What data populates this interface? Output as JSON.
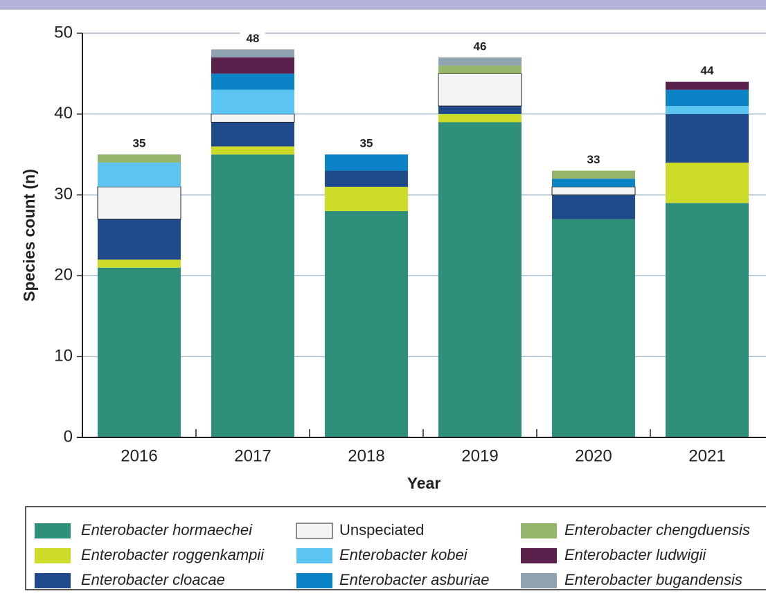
{
  "chart_data": {
    "type": "stacked_bar",
    "xlabel": "Year",
    "ylabel": "Species count (n)",
    "categories": [
      "2016",
      "2017",
      "2018",
      "2019",
      "2020",
      "2021"
    ],
    "totals": [
      35,
      48,
      35,
      46,
      33,
      44
    ],
    "series": [
      {
        "name": "Enterobacter hormaechei",
        "color": "#2e8f7a",
        "italic": true,
        "values": [
          21,
          35,
          28,
          39,
          27,
          29
        ]
      },
      {
        "name": "Enterobacter roggenkampii",
        "color": "#cddc29",
        "italic": true,
        "values": [
          1,
          1,
          3,
          1,
          0,
          5
        ]
      },
      {
        "name": "Enterobacter cloacae",
        "color": "#1f4a8c",
        "italic": true,
        "values": [
          5,
          3,
          2,
          1,
          3,
          6
        ]
      },
      {
        "name": "Unspeciated",
        "color": "#f2f4f6",
        "italic": false,
        "values": [
          4,
          1,
          0,
          4,
          1,
          0
        ]
      },
      {
        "name": "Enterobacter kobei",
        "color": "#5bc4f1",
        "italic": true,
        "values": [
          3,
          3,
          0,
          0,
          0,
          1
        ]
      },
      {
        "name": "Enterobacter asburiae",
        "color": "#0a84c6",
        "italic": true,
        "values": [
          0,
          2,
          2,
          0,
          1,
          2
        ]
      },
      {
        "name": "Enterobacter chengduensis",
        "color": "#94b56a",
        "italic": true,
        "values": [
          1,
          0,
          0,
          1,
          1,
          0
        ]
      },
      {
        "name": "Enterobacter ludwigii",
        "color": "#5a1f4b",
        "italic": true,
        "values": [
          0,
          2,
          0,
          0,
          0,
          1
        ]
      },
      {
        "name": "Enterobacter bugandensis",
        "color": "#8fa3b0",
        "italic": true,
        "values": [
          0,
          1,
          0,
          1,
          0,
          0
        ]
      }
    ],
    "ylim": [
      0,
      50
    ],
    "yticks": [
      0,
      10,
      20,
      30,
      40,
      50
    ],
    "grid": true
  }
}
